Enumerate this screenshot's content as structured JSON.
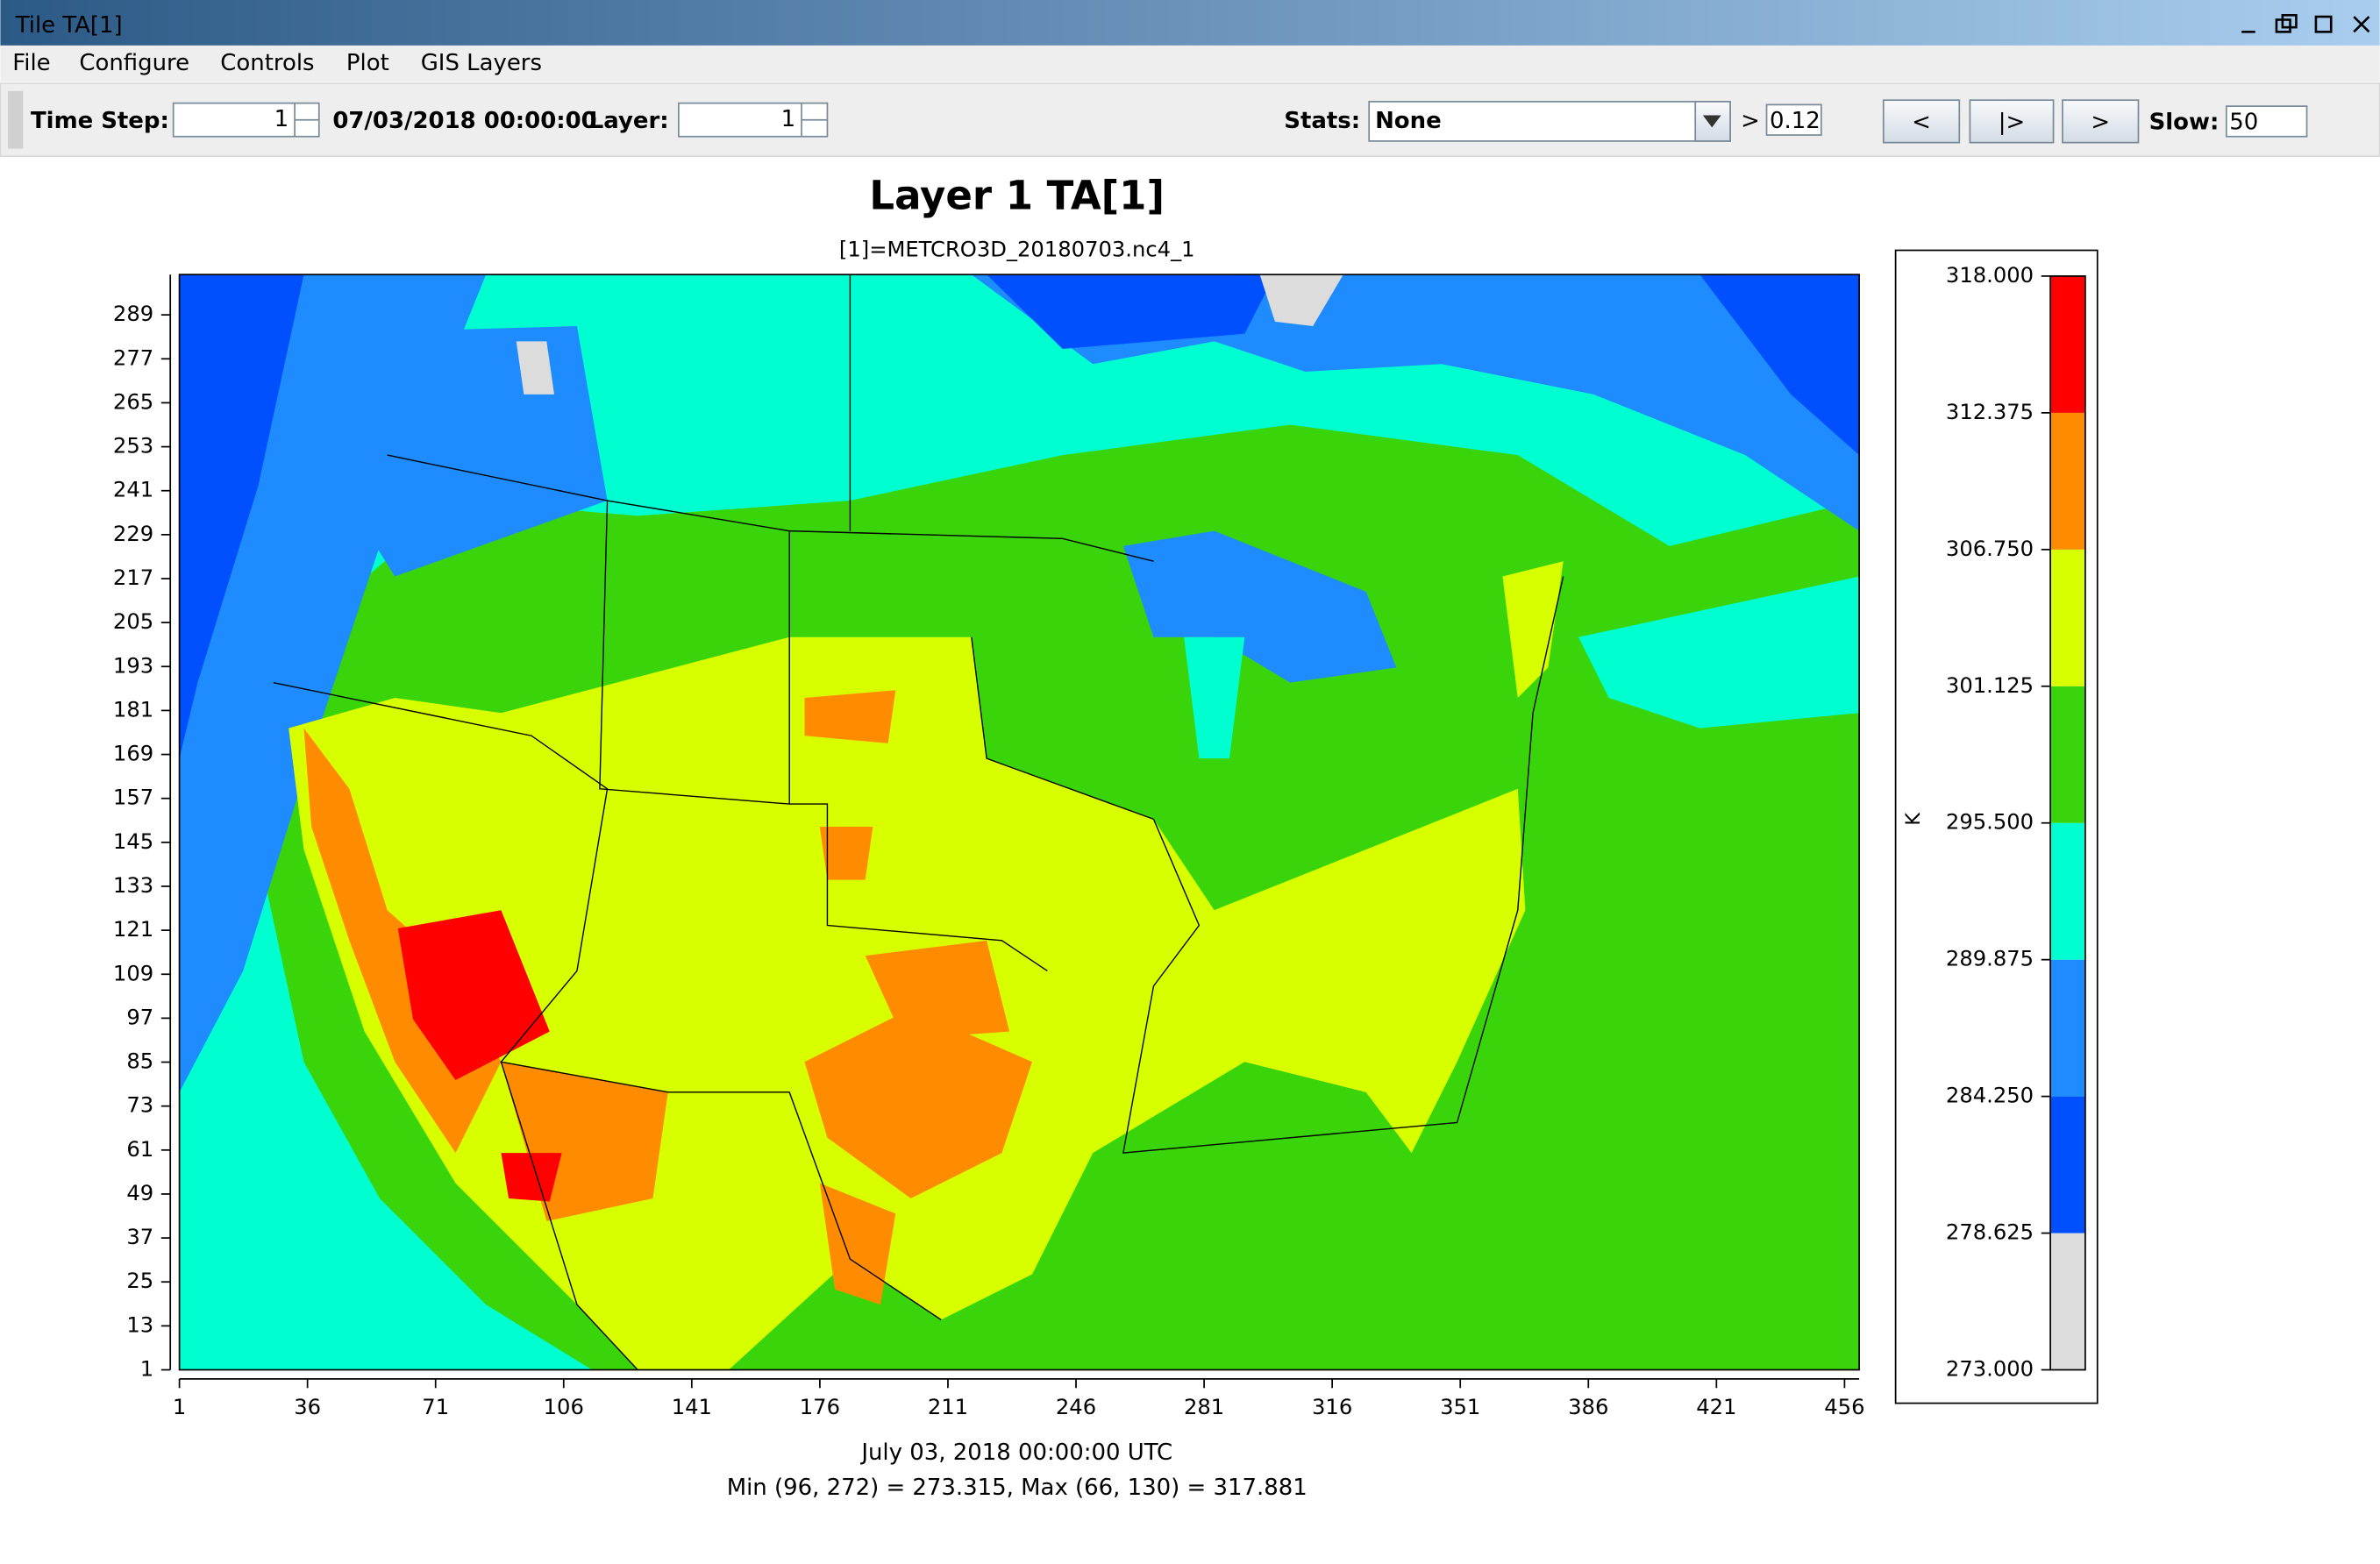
{
  "window": {
    "title": "Tile TA[1]"
  },
  "menu": [
    "File",
    "Configure",
    "Controls",
    "Plot",
    "GIS Layers"
  ],
  "toolbar": {
    "time_step_label": "Time Step:",
    "time_step": 1,
    "datetime": "07/03/2018 00:00:00",
    "layer_label": "Layer:",
    "layer": 1,
    "stats_label": "Stats:",
    "stats": "None",
    "threshold_prefix": ">",
    "threshold": 0.12,
    "buttons": [
      "<",
      "|>",
      ">"
    ],
    "slow_label": "Slow:",
    "slow": 50
  },
  "plot": {
    "title": "Layer 1 TA[1]",
    "subtitle": "[1]=METCRO3D_20180703.nc4_1",
    "xlim": [
      1,
      460
    ],
    "ylim": [
      1,
      300
    ],
    "xticks": [
      1,
      36,
      71,
      106,
      141,
      176,
      211,
      246,
      281,
      316,
      351,
      386,
      421,
      456
    ],
    "yticks": [
      1,
      13,
      25,
      37,
      49,
      61,
      73,
      85,
      97,
      109,
      121,
      133,
      145,
      157,
      169,
      181,
      193,
      205,
      217,
      229,
      241,
      253,
      265,
      277,
      289
    ],
    "legend": {
      "unit": "K",
      "levels": [
        {
          "value": 273,
          "label": "273.000"
        },
        {
          "value": 278.625,
          "label": "278.625"
        },
        {
          "value": 284.25,
          "label": "284.250"
        },
        {
          "value": 289.875,
          "label": "289.875"
        },
        {
          "value": 295.5,
          "label": "295.500"
        },
        {
          "value": 301.125,
          "label": "301.125"
        },
        {
          "value": 306.75,
          "label": "306.750"
        },
        {
          "value": 312.375,
          "label": "312.375"
        },
        {
          "value": 318,
          "label": "318.000"
        }
      ],
      "colors": [
        "#dcdcdc",
        "#0050ff",
        "#1e8cff",
        "#00ffd0",
        "#3ad40a",
        "#d8ff00",
        "#ff8c00",
        "#ff0000"
      ]
    },
    "footer": [
      "July 03, 2018 00:00:00 UTC",
      "Min (96, 272) = 273.315, Max (66, 130) = 317.881"
    ]
  }
}
